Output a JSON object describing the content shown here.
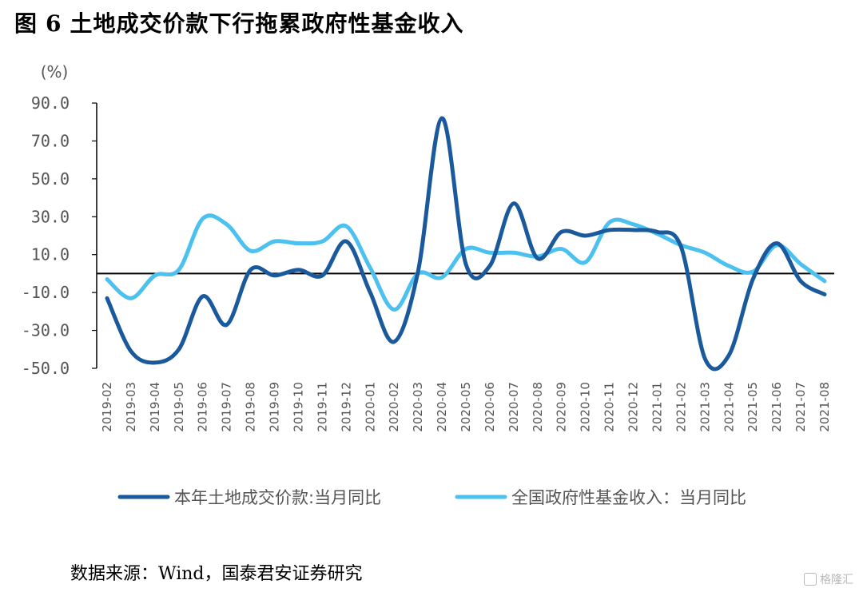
{
  "figure": {
    "label": "图",
    "number": "6",
    "title": "土地成交价款下行拖累政府性基金收入"
  },
  "source_note": "数据来源：Wind，国泰君安证券研究",
  "watermark": "格隆汇",
  "colors": {
    "series1": "#1a5a9c",
    "series2": "#4cc0ee",
    "axis": "#000000",
    "text": "#555555"
  },
  "chart_data": {
    "type": "line",
    "ylabel": "(%)",
    "ylim": [
      -50,
      90
    ],
    "yticks": [
      90,
      70,
      50,
      30,
      10,
      -10,
      -30,
      -50
    ],
    "ytick_labels": [
      "90.0",
      "70.0",
      "50.0",
      "30.0",
      "10.0",
      "-10.0",
      "-30.0",
      "-50.0"
    ],
    "grid": false,
    "legend": "bottom",
    "categories": [
      "2019-02",
      "2019-03",
      "2019-04",
      "2019-05",
      "2019-06",
      "2019-07",
      "2019-08",
      "2019-09",
      "2019-10",
      "2019-11",
      "2019-12",
      "2020-01",
      "2020-02",
      "2020-03",
      "2020-04",
      "2020-05",
      "2020-06",
      "2020-07",
      "2020-08",
      "2020-09",
      "2020-10",
      "2020-11",
      "2020-12",
      "2021-01",
      "2021-02",
      "2021-03",
      "2021-04",
      "2021-05",
      "2021-06",
      "2021-07",
      "2021-08"
    ],
    "series": [
      {
        "name": "本年土地成交价款:当月同比",
        "values": [
          -13,
          -41,
          -47,
          -40,
          -12,
          -27,
          2,
          -1,
          2,
          -1,
          17,
          -10,
          -36,
          1,
          82,
          5,
          4,
          37,
          8,
          22,
          20,
          23,
          23,
          22,
          14,
          -45,
          -43,
          -3,
          16,
          -4,
          -11
        ]
      },
      {
        "name": "全国政府性基金收入：当月同比",
        "values": [
          -3,
          -13,
          -1,
          2,
          29,
          26,
          12,
          17,
          16,
          17,
          25,
          3,
          -19,
          0,
          -2,
          13,
          11,
          11,
          9,
          13,
          6,
          27,
          26,
          21,
          15,
          11,
          4,
          1,
          15,
          5,
          -4
        ]
      }
    ]
  }
}
